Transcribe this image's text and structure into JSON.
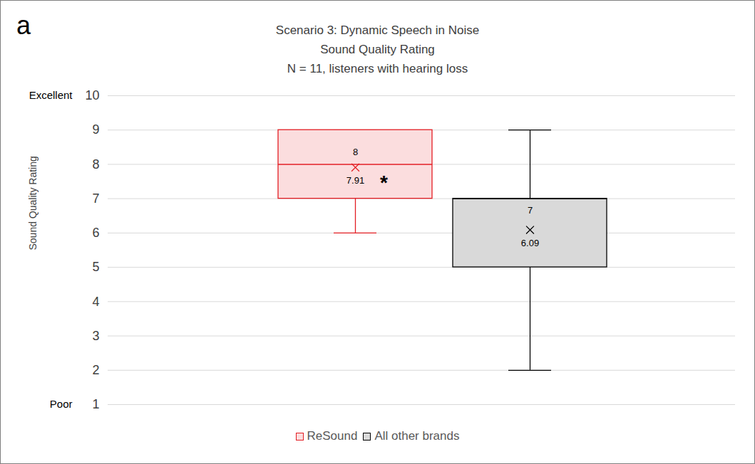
{
  "chart_data": {
    "type": "box",
    "panel_label": "a",
    "title": "Scenario 3: Dynamic Speech in Noise",
    "subtitle": [
      "Sound Quality Rating",
      "N = 11, listeners with hearing loss"
    ],
    "y_label": "Sound Quality Rating",
    "ylim": [
      1,
      10
    ],
    "yticks": [
      1,
      2,
      3,
      4,
      5,
      6,
      7,
      8,
      9,
      10
    ],
    "y_annotations": [
      {
        "value": 10,
        "label": "Excellent"
      },
      {
        "value": 1,
        "label": "Poor"
      }
    ],
    "grid": true,
    "legend": "bottom",
    "tick_labels": "y",
    "data_labels": true,
    "marker": "x",
    "series": [
      {
        "name": "ReSound",
        "color": "#e31e24",
        "min": 6,
        "q1": 7,
        "median": 8,
        "q3": 9,
        "max": 9,
        "mean": 7.91,
        "annotation": "*"
      },
      {
        "name": "All other brands",
        "color": "#000000",
        "min": 2,
        "q1": 5,
        "median": 7,
        "q3": 7,
        "max": 9,
        "mean": 6.09
      }
    ]
  }
}
